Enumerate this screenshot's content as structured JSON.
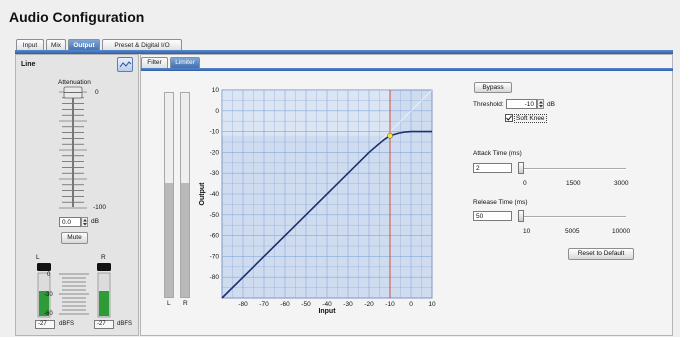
{
  "window": {
    "title": "Audio Configuration"
  },
  "tabs": [
    {
      "label": "Input"
    },
    {
      "label": "Mix"
    },
    {
      "label": "Output",
      "active": true
    },
    {
      "label": "Preset & Digital I/O"
    }
  ],
  "line_panel": {
    "title": "Line",
    "attenuation_label": "Attenuation",
    "fader_top_label": "0",
    "fader_bottom_label": "-100",
    "attenuation_value": "0.0",
    "attenuation_unit": "dB",
    "mute_label": "Mute",
    "channels": [
      {
        "label": "L",
        "reading": "-27",
        "unit": "dBFS"
      },
      {
        "label": "R",
        "reading": "-27",
        "unit": "dBFS"
      }
    ],
    "meter_scale": [
      "0",
      "-30",
      "-60"
    ],
    "meter_level": 0.55
  },
  "subtabs": [
    {
      "label": "Filter"
    },
    {
      "label": "Limiter",
      "active": true
    }
  ],
  "limiter": {
    "meter_labels": [
      "L",
      "R"
    ],
    "meter_level": 0.56,
    "chart_data": {
      "type": "line",
      "xlabel": "Input",
      "ylabel": "Output",
      "xlim": [
        -90,
        10
      ],
      "ylim": [
        -90,
        10
      ],
      "x_ticks": [
        "-80",
        "-70",
        "-60",
        "-50",
        "-40",
        "-30",
        "-20",
        "-10",
        "0",
        "10"
      ],
      "y_ticks": [
        "10",
        "0",
        "-10",
        "-20",
        "-30",
        "-40",
        "-50",
        "-60",
        "-70",
        "-80"
      ],
      "series": [
        {
          "values_x": [
            -90,
            -20,
            -16,
            -13,
            -10,
            -6,
            -3,
            0,
            10
          ],
          "values_y": [
            -90,
            -20,
            -16.5,
            -14,
            -12,
            -10.8,
            -10.2,
            -10,
            -10
          ]
        }
      ],
      "threshold_line_x": -10,
      "knee_point": [
        -10,
        -12
      ],
      "grid": true,
      "colors": {
        "curve": "#1c2f6e",
        "threshold": "#d0442a",
        "grid": "#8aa7d6",
        "plot_bg": "#cfdcf0",
        "knee": "#f1e64b"
      }
    },
    "bypass_label": "Bypass",
    "threshold_label": "Threshold:",
    "threshold_value": "-10",
    "threshold_unit": "dB",
    "soft_knee_label": "Soft Knee",
    "soft_knee_checked": true,
    "attack": {
      "label": "Attack Time (ms)",
      "value": "2",
      "scale": [
        "0",
        "1500",
        "3000"
      ],
      "level": 0.0
    },
    "release": {
      "label": "Release Time (ms)",
      "value": "50",
      "scale": [
        "10",
        "5005",
        "10000"
      ],
      "level": 0.0
    },
    "reset_label": "Reset to Default"
  }
}
